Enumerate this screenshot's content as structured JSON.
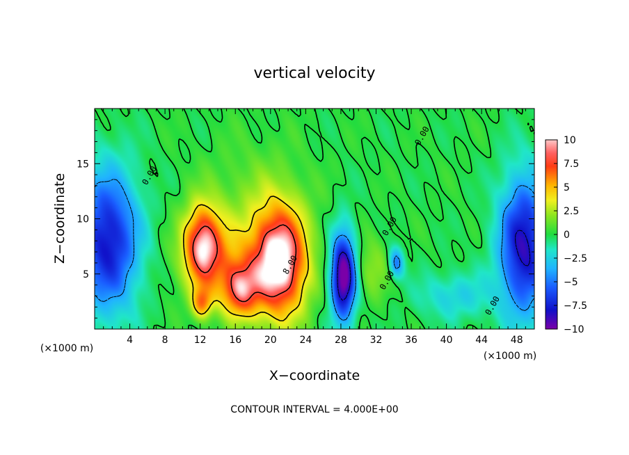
{
  "chart_data": {
    "type": "heatmap",
    "title": "vertical velocity",
    "xlabel": "X−coordinate",
    "ylabel": "Z−coordinate",
    "x_unit_left": "(×1000 m)",
    "x_unit_right": "(×1000 m)",
    "xlim": [
      0,
      50
    ],
    "ylim": [
      0,
      20
    ],
    "xticks": [
      4,
      8,
      12,
      16,
      20,
      24,
      28,
      32,
      36,
      40,
      44,
      48
    ],
    "yticks": [
      5,
      10,
      15
    ],
    "colorbar": {
      "vmin": -10,
      "vmax": 10,
      "ticks": [
        10,
        7.5,
        5,
        2.5,
        0,
        -2.5,
        -5,
        -7.5,
        -10
      ],
      "tick_labels": [
        "10",
        "7.5",
        "5",
        "2.5",
        "0",
        "−2.5",
        "−5",
        "−7.5",
        "−10"
      ]
    },
    "contour_labels": [
      {
        "text": "0.00",
        "x": 6.5,
        "y": 13.8
      },
      {
        "text": "0.00",
        "x": 37.5,
        "y": 17.4
      },
      {
        "text": "0.00",
        "x": 33.8,
        "y": 9.2
      },
      {
        "text": "8.00",
        "x": 22.5,
        "y": 5.7
      },
      {
        "text": "0.00",
        "x": 33.5,
        "y": 4.3
      },
      {
        "text": "0.00",
        "x": 45.5,
        "y": 2.0
      }
    ],
    "field_features": [
      {
        "x": 1.5,
        "y": 8.0,
        "sx": 2.5,
        "sy": 4.5,
        "amp": -8.0
      },
      {
        "x": 48.8,
        "y": 7.5,
        "sx": 2.0,
        "sy": 4.5,
        "amp": -8.5
      },
      {
        "x": 28.3,
        "y": 4.8,
        "sx": 1.0,
        "sy": 2.8,
        "amp": -11.0
      },
      {
        "x": 34.3,
        "y": 6.0,
        "sx": 0.6,
        "sy": 1.0,
        "amp": -5.0
      },
      {
        "x": 41.0,
        "y": 3.0,
        "sx": 3.0,
        "sy": 1.5,
        "amp": -2.5
      },
      {
        "x": 12.3,
        "y": 7.8,
        "sx": 1.5,
        "sy": 2.5,
        "amp": 8.0
      },
      {
        "x": 16.5,
        "y": 3.5,
        "sx": 1.5,
        "sy": 1.8,
        "amp": 7.0
      },
      {
        "x": 12.2,
        "y": 2.3,
        "sx": 0.8,
        "sy": 1.0,
        "amp": 5.0
      },
      {
        "x": 21.0,
        "y": 6.0,
        "sx": 2.2,
        "sy": 3.5,
        "amp": 11.0
      },
      {
        "x": 14.0,
        "y": 6.0,
        "sx": 3.0,
        "sy": 2.5,
        "amp": 3.0
      },
      {
        "x": 31.5,
        "y": 5.5,
        "sx": 1.5,
        "sy": 2.0,
        "amp": 2.0
      },
      {
        "x": 18.0,
        "y": 11.0,
        "sx": 4.0,
        "sy": 4.0,
        "amp": 1.5
      }
    ],
    "footer": "CONTOUR INTERVAL = 4.000E+00"
  }
}
